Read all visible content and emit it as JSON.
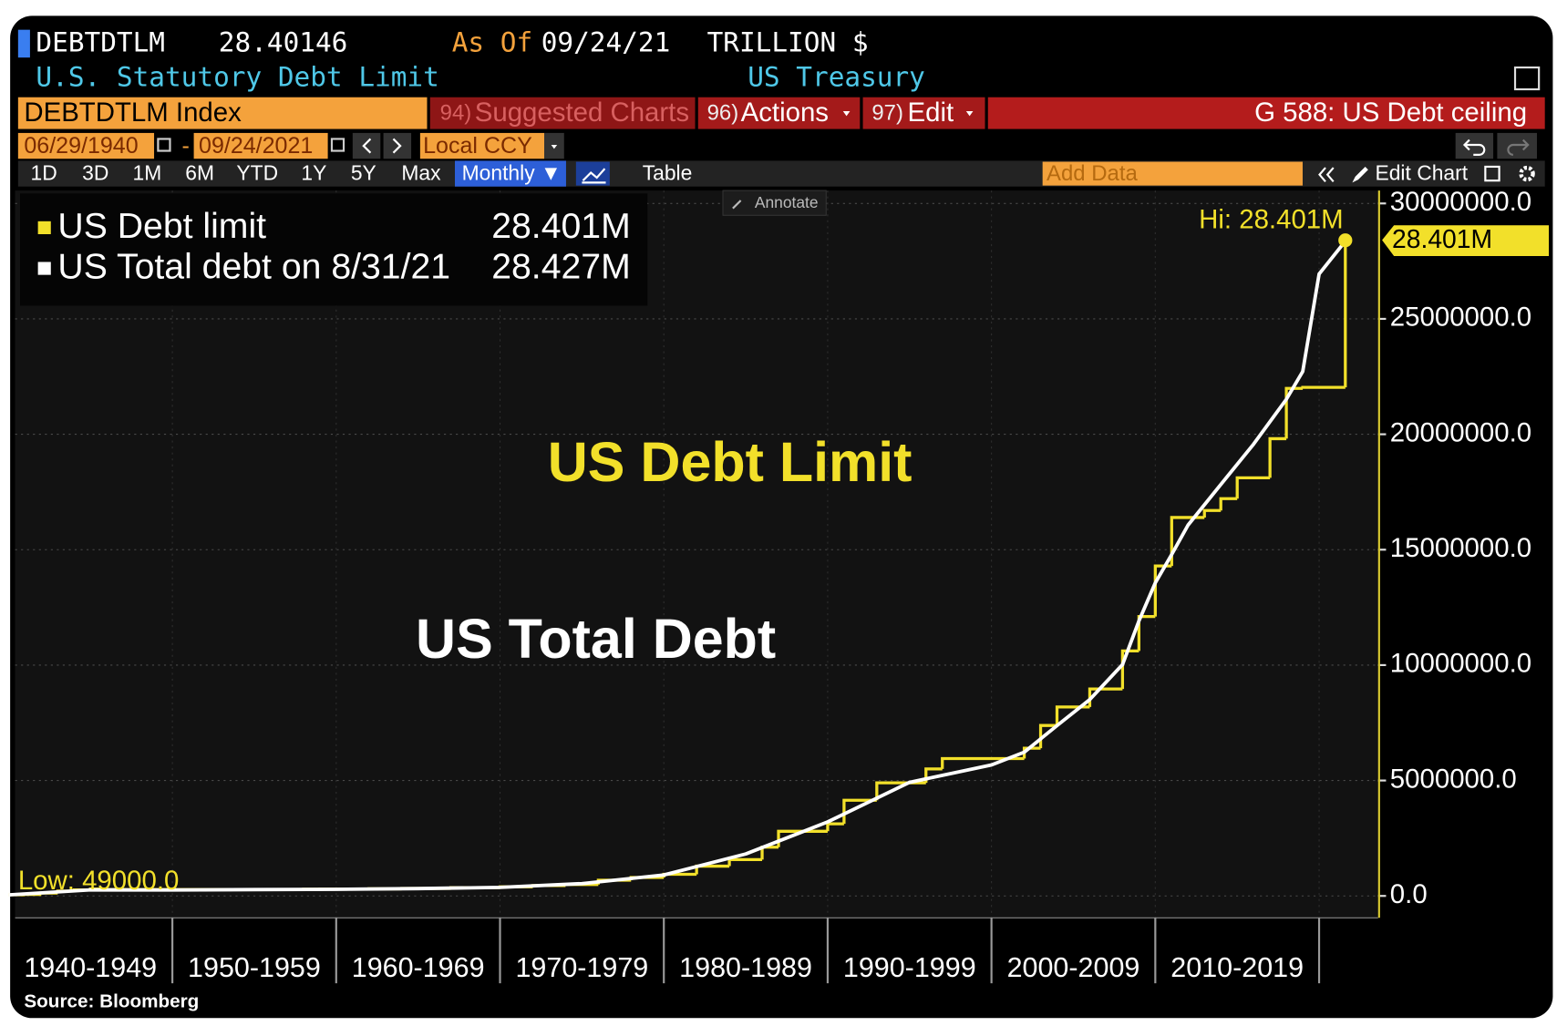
{
  "terminal": {
    "ticker": "DEBTDTLM",
    "last": "28.40146",
    "as_of_label": "As Of",
    "as_of": "09/24/21",
    "units": "TRILLION $",
    "description": "U.S. Statutory Debt Limit",
    "source_name": "US Treasury",
    "security": "DEBTDTLM Index",
    "menu": [
      {
        "num": "94)",
        "label": "Suggested Charts"
      },
      {
        "num": "96)",
        "label": "Actions"
      },
      {
        "num": "97)",
        "label": "Edit"
      }
    ],
    "page_title": "G 588: US Debt ceiling",
    "start_date": "06/29/1940",
    "date_sep": "-",
    "end_date": "09/24/2021",
    "currency": "Local CCY",
    "periods": [
      "1D",
      "3D",
      "1M",
      "6M",
      "YTD",
      "1Y",
      "5Y",
      "Max"
    ],
    "frequency": "Monthly ▼",
    "table": "Table",
    "add_data": "Add Data",
    "edit_chart": "Edit Chart",
    "annotate": "Annotate",
    "footer": "Source: Bloomberg"
  },
  "chart_data": {
    "type": "line",
    "annotations": [
      "US Debt Limit",
      "US Total Debt",
      "Hi: 28.401M",
      "Low: 49000.0"
    ],
    "last_tag": "28.401M",
    "legend": "upper left",
    "grid": true,
    "categories": [
      "1940-1949",
      "1950-1959",
      "1960-1969",
      "1970-1979",
      "1980-1989",
      "1990-1999",
      "2000-2009",
      "2010-2019"
    ],
    "xticks": [
      1940,
      1950,
      1960,
      1970,
      1980,
      1990,
      2000,
      2010,
      2020
    ],
    "xlim": [
      1940.4,
      2023.6
    ],
    "ylim": [
      -950000,
      30560000
    ],
    "yticks": [
      {
        "value": 0,
        "label": "0.0"
      },
      {
        "value": 5000000,
        "label": "5000000.0"
      },
      {
        "value": 10000000,
        "label": "10000000.0"
      },
      {
        "value": 15000000,
        "label": "15000000.0"
      },
      {
        "value": 20000000,
        "label": "20000000.0"
      },
      {
        "value": 25000000,
        "label": "25000000.0"
      },
      {
        "value": 30000000,
        "label": "30000000.0"
      }
    ],
    "series": [
      {
        "name": "US Debt limit",
        "legend_value": "28.401M",
        "color": "#f2e02a",
        "drawstyle": "steps",
        "x": [
          1940,
          1941,
          1942,
          1943,
          1944,
          1945,
          1946,
          1954,
          1958,
          1959,
          1962,
          1964,
          1967,
          1970,
          1972,
          1974,
          1976,
          1978,
          1980,
          1982,
          1984,
          1986,
          1987,
          1990,
          1991,
          1993,
          1996,
          1997,
          2002,
          2003,
          2004,
          2006,
          2008,
          2009,
          2010,
          2011,
          2013,
          2014,
          2015,
          2017,
          2018,
          2019,
          2021.6
        ],
        "values": [
          49000,
          65000,
          125000,
          210000,
          260000,
          300000,
          275000,
          281000,
          288000,
          295000,
          308000,
          324000,
          358000,
          395000,
          450000,
          495000,
          682000,
          798000,
          935000,
          1290000,
          1573000,
          2111000,
          2800000,
          3123000,
          4145000,
          4900000,
          5500000,
          5950000,
          6400000,
          7384000,
          8184000,
          8965000,
          10615000,
          12104000,
          14294000,
          16394000,
          16699000,
          17212000,
          18113000,
          19809000,
          21988000,
          22030000,
          28401000
        ]
      },
      {
        "name": "US Total debt on 8/31/21",
        "legend_value": "28.427M",
        "color": "#ffffff",
        "x": [
          1940,
          1945,
          1950,
          1955,
          1960,
          1965,
          1970,
          1975,
          1980,
          1985,
          1990,
          1995,
          2000,
          2002,
          2004,
          2006,
          2008,
          2009,
          2010,
          2011,
          2012,
          2014,
          2016,
          2018,
          2019,
          2020,
          2021.67
        ],
        "values": [
          45000,
          260000,
          257000,
          274000,
          286000,
          317000,
          370000,
          533000,
          908000,
          1817000,
          3206000,
          4921000,
          5674000,
          6228000,
          7379000,
          8507000,
          10025000,
          11910000,
          13562000,
          14790000,
          16066000,
          17824000,
          19573000,
          21516000,
          22719000,
          26945000,
          28427000
        ]
      }
    ]
  }
}
